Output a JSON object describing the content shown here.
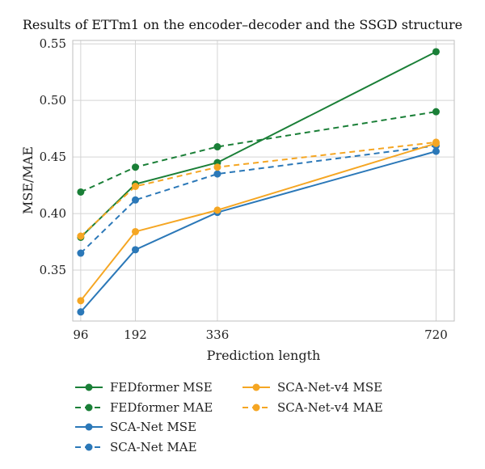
{
  "chart_data": {
    "type": "line",
    "title": "Results of ETTm1 on the encoder–decoder and the SSGD structure",
    "xlabel": "Prediction length",
    "ylabel": "MSE/MAE",
    "x": [
      96,
      192,
      336,
      720
    ],
    "x_tick_labels": [
      "96",
      "192",
      "336",
      "720"
    ],
    "xlim": [
      82,
      752
    ],
    "ylim": [
      0.305,
      0.553
    ],
    "y_ticks": [
      0.35,
      0.4,
      0.45,
      0.5,
      0.55
    ],
    "y_tick_labels": [
      "0.35",
      "0.40",
      "0.45",
      "0.50",
      "0.55"
    ],
    "grid": true,
    "legend_position": "below",
    "series": [
      {
        "name": "FEDformer MSE",
        "color": "#1a7f37",
        "style": "solid",
        "values": [
          0.379,
          0.426,
          0.445,
          0.543
        ]
      },
      {
        "name": "FEDformer MAE",
        "color": "#1a7f37",
        "style": "dashed",
        "values": [
          0.419,
          0.441,
          0.459,
          0.49
        ]
      },
      {
        "name": "SCA-Net MSE",
        "color": "#2b78b8",
        "style": "solid",
        "values": [
          0.313,
          0.368,
          0.401,
          0.455
        ]
      },
      {
        "name": "SCA-Net MAE",
        "color": "#2b78b8",
        "style": "dashed",
        "values": [
          0.365,
          0.412,
          0.435,
          0.46
        ]
      },
      {
        "name": "SCA-Net-v4 MSE",
        "color": "#f5a623",
        "style": "solid",
        "values": [
          0.323,
          0.384,
          0.403,
          0.462
        ]
      },
      {
        "name": "SCA-Net-v4 MAE",
        "color": "#f5a623",
        "style": "dashed",
        "values": [
          0.38,
          0.424,
          0.441,
          0.463
        ]
      }
    ]
  }
}
